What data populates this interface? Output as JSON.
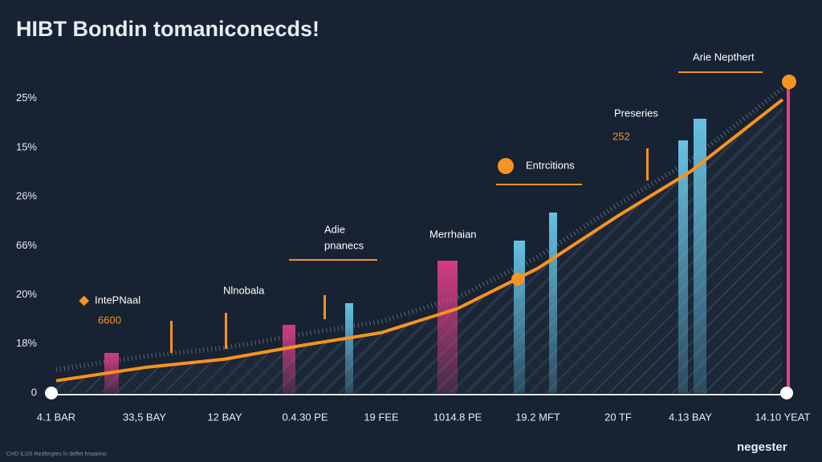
{
  "chart_data": {
    "type": "line",
    "title": "HIBT Bondin tomaniconecds!",
    "y_labels": [
      "0",
      "18%",
      "20%",
      "66%",
      "26%",
      "15%",
      "25%"
    ],
    "categories": [
      "4.1 BAR",
      "33,5 BAY",
      "12 BAY",
      "0.4.30 PE",
      "19 FEE",
      "1014.8 PE",
      "19.2 MFT",
      "20 TF",
      "4.13 BAY",
      "14.10 YEAT"
    ],
    "values": [
      0.25,
      0.52,
      0.69,
      0.98,
      1.23,
      1.72,
      2.54,
      3.61,
      4.51,
      5.98
    ],
    "color": "#f7931e",
    "annotations": [
      "IntePNaal",
      "6600",
      "Nlnobala",
      "Adie",
      "pnanecs",
      "Merrhaian",
      "Entrcitions",
      "Preseries",
      "252",
      "Arie Nepthert"
    ],
    "brand": "negester",
    "footer": "CHD ILDS Redfergtes ln deffet hnaarino"
  }
}
